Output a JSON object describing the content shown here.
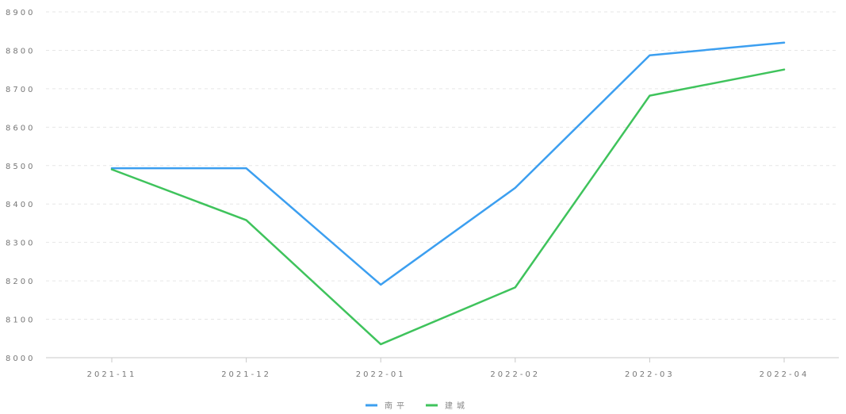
{
  "chart_data": {
    "type": "line",
    "categories": [
      "2021-11",
      "2021-12",
      "2022-01",
      "2022-02",
      "2022-03",
      "2022-04"
    ],
    "series": [
      {
        "name": "南平",
        "color": "#3c9ff0",
        "values": [
          8493,
          8493,
          8190,
          8442,
          8787,
          8820
        ]
      },
      {
        "name": "建城",
        "color": "#3fc35c",
        "values": [
          8490,
          8358,
          8035,
          8183,
          8682,
          8750
        ]
      }
    ],
    "ylim": [
      8000,
      8900
    ],
    "yticks": [
      "8000",
      "8100",
      "8200",
      "8300",
      "8400",
      "8500",
      "8600",
      "8700",
      "8800",
      "8900"
    ],
    "grid": true,
    "legend": "bottom-center",
    "title": "",
    "xlabel": "",
    "ylabel": ""
  }
}
